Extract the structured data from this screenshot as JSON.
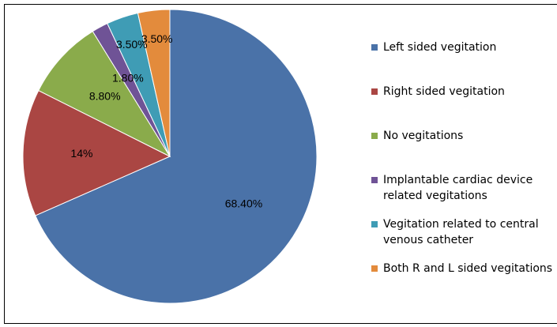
{
  "chart_data": {
    "type": "pie",
    "categories": [
      "Left sided vegitation",
      "Right sided vegitation",
      "No vegitations",
      "Implantable cardiac device related vegitations",
      "Vegitation related to central venous catheter",
      "Both R and L sided vegitations"
    ],
    "values": [
      68.4,
      14,
      8.8,
      1.8,
      3.5,
      3.5
    ],
    "value_labels": [
      "68.40%",
      "14%",
      "8.80%",
      "1.80%",
      "3.50%",
      "3.50%"
    ],
    "colors": [
      "#4a72a8",
      "#aa4643",
      "#8aab4b",
      "#6f5396",
      "#3f9cb5",
      "#e38b3c"
    ],
    "legend": "right"
  }
}
